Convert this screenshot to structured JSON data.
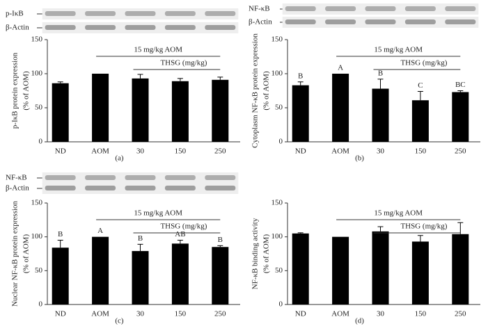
{
  "chart_data": [
    {
      "type": "bar",
      "caption": "(a)",
      "ylabel": [
        "p-IκB protein expression",
        "(% of AOM)"
      ],
      "blot_labels": [
        "p-IκB",
        "β-Actin"
      ],
      "annotations": [
        "15 mg/kg AOM",
        "THSG (mg/kg)"
      ],
      "categories": [
        "ND",
        "AOM",
        "30",
        "150",
        "250"
      ],
      "values": [
        86,
        100,
        93,
        89,
        91
      ],
      "errors": [
        2,
        0,
        6,
        4,
        4
      ],
      "color": "#000000",
      "ylim": [
        0,
        150
      ],
      "yticks": [
        0,
        50,
        100,
        150
      ]
    },
    {
      "type": "bar",
      "caption": "(b)",
      "ylabel": [
        "Cytoplasm NF-κB protein expression",
        "(% of AOM)"
      ],
      "blot_labels": [
        "NF-κB",
        "β-Actin"
      ],
      "annotations": [
        "15 mg/kg AOM",
        "THSG (mg/kg)"
      ],
      "categories": [
        "ND",
        "AOM",
        "30",
        "150",
        "250"
      ],
      "values": [
        83,
        100,
        78,
        61,
        73
      ],
      "errors": [
        5,
        0,
        14,
        13,
        2
      ],
      "letters": [
        "B",
        "A",
        "B",
        "C",
        "BC"
      ],
      "color": "#000000",
      "ylim": [
        0,
        150
      ],
      "yticks": [
        0,
        50,
        100,
        150
      ]
    },
    {
      "type": "bar",
      "caption": "(c)",
      "ylabel": [
        "Nuclear NF-κB protein expression",
        "(% of AOM)"
      ],
      "blot_labels": [
        "NF-κB",
        "β-Actin"
      ],
      "annotations": [
        "15 mg/kg AOM",
        "THSG (mg/kg)"
      ],
      "categories": [
        "ND",
        "AOM",
        "30",
        "150",
        "250"
      ],
      "values": [
        84,
        100,
        79,
        90,
        85
      ],
      "errors": [
        11,
        0,
        10,
        5,
        2
      ],
      "letters": [
        "B",
        "A",
        "B",
        "AB",
        "B"
      ],
      "color": "#000000",
      "ylim": [
        0,
        150
      ],
      "yticks": [
        0,
        50,
        100,
        150
      ]
    },
    {
      "type": "bar",
      "caption": "(d)",
      "ylabel": [
        "NF-κB binding activity",
        "(% of AOM)"
      ],
      "annotations": [
        "15 mg/kg AOM",
        "THSG (mg/kg)"
      ],
      "categories": [
        "ND",
        "AOM",
        "30",
        "150",
        "250"
      ],
      "values": [
        105,
        100,
        108,
        93,
        104
      ],
      "errors": [
        1,
        0,
        7,
        9,
        17
      ],
      "color": "#000000",
      "ylim": [
        0,
        150
      ],
      "yticks": [
        0,
        50,
        100,
        150
      ]
    }
  ]
}
